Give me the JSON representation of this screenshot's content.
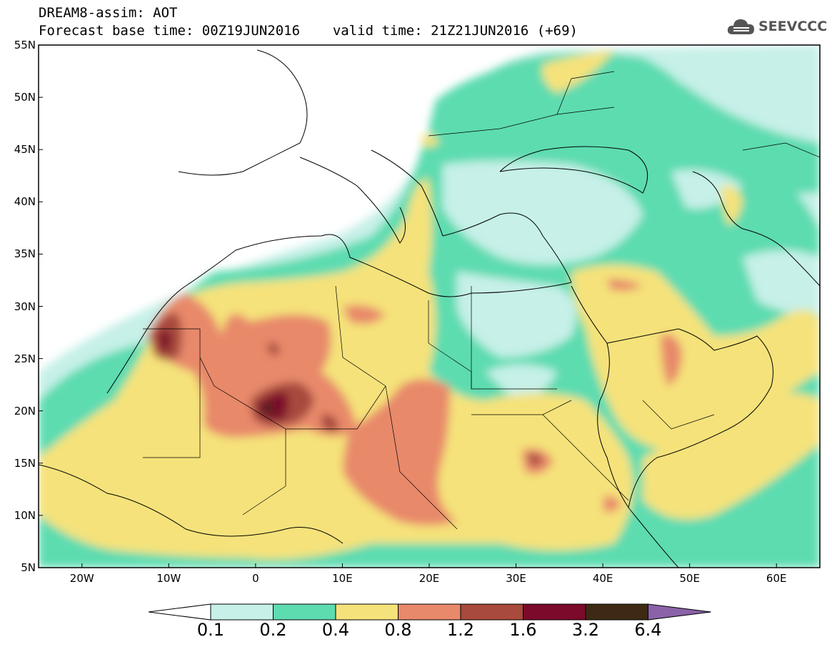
{
  "header": {
    "line1": "DREAM8-assim: AOT",
    "line2_base": "Forecast base time: 00Z19JUN2016",
    "line2_valid": "valid time: 21Z21JUN2016 (+69)"
  },
  "logo": {
    "text": "SEEVCCC",
    "icon": "cloud-icon"
  },
  "map": {
    "lat_labels": [
      "55N",
      "50N",
      "45N",
      "40N",
      "35N",
      "30N",
      "25N",
      "20N",
      "15N",
      "10N",
      "5N"
    ],
    "lon_labels": [
      "20W",
      "10W",
      "0",
      "10E",
      "20E",
      "30E",
      "40E",
      "50E",
      "60E"
    ],
    "lon_range": [
      -25,
      65
    ],
    "lat_range": [
      5,
      55
    ]
  },
  "colorbar": {
    "labels": [
      "0.1",
      "0.2",
      "0.4",
      "0.8",
      "1.2",
      "1.6",
      "3.2",
      "6.4"
    ],
    "colors": [
      "#ffffff",
      "#c6f0e8",
      "#5ddcb0",
      "#f5e27a",
      "#e8896a",
      "#a84a3c",
      "#7c0a2a",
      "#3e2a14",
      "#8a62a8"
    ]
  }
}
